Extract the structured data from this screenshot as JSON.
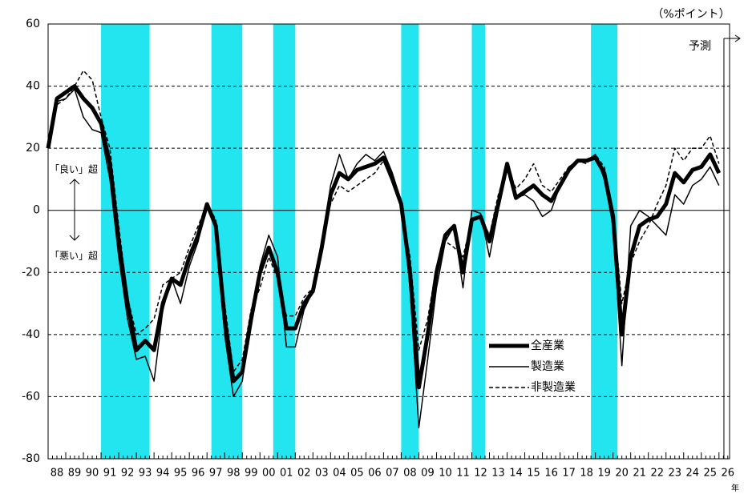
{
  "chart_data": {
    "type": "line",
    "unit_label": "（%ポイント）",
    "x_axis_label": "年",
    "forecast_label": "予測",
    "forecast_x": 2026.28,
    "annotations": [
      "「良い」超",
      "「悪い」超"
    ],
    "shaded_periods": [
      [
        1991,
        1993.75
      ],
      [
        1997.25,
        1999
      ],
      [
        2000.75,
        2002
      ],
      [
        2008,
        2009
      ],
      [
        2012,
        2012.75
      ],
      [
        2018.75,
        2020.25
      ]
    ],
    "shade_color": "#22e5f0",
    "xlim": [
      1988,
      2026.6
    ],
    "ylim": [
      -80,
      60
    ],
    "yticks": [
      -80,
      -60,
      -40,
      -20,
      0,
      20,
      40,
      60
    ],
    "grid": true,
    "xticks": [
      {
        "value": 1988,
        "label": "88"
      },
      {
        "value": 1989,
        "label": "89"
      },
      {
        "value": 1990,
        "label": "90"
      },
      {
        "value": 1991,
        "label": "91"
      },
      {
        "value": 1992,
        "label": "92"
      },
      {
        "value": 1993,
        "label": "93"
      },
      {
        "value": 1994,
        "label": "94"
      },
      {
        "value": 1995,
        "label": "95"
      },
      {
        "value": 1996,
        "label": "96"
      },
      {
        "value": 1997,
        "label": "97"
      },
      {
        "value": 1998,
        "label": "98"
      },
      {
        "value": 1999,
        "label": "99"
      },
      {
        "value": 2000,
        "label": "00"
      },
      {
        "value": 2001,
        "label": "01"
      },
      {
        "value": 2002,
        "label": "02"
      },
      {
        "value": 2003,
        "label": "03"
      },
      {
        "value": 2004,
        "label": "04"
      },
      {
        "value": 2005,
        "label": "05"
      },
      {
        "value": 2006,
        "label": "06"
      },
      {
        "value": 2007,
        "label": "07"
      },
      {
        "value": 2008,
        "label": "08"
      },
      {
        "value": 2009,
        "label": "09"
      },
      {
        "value": 2010,
        "label": "10"
      },
      {
        "value": 2011,
        "label": "11"
      },
      {
        "value": 2012,
        "label": "12"
      },
      {
        "value": 2013,
        "label": "13"
      },
      {
        "value": 2014,
        "label": "14"
      },
      {
        "value": 2015,
        "label": "15"
      },
      {
        "value": 2016,
        "label": "16"
      },
      {
        "value": 2017,
        "label": "17"
      },
      {
        "value": 2018,
        "label": "18"
      },
      {
        "value": 2019,
        "label": "19"
      },
      {
        "value": 2020,
        "label": "20"
      },
      {
        "value": 2021,
        "label": "21"
      },
      {
        "value": 2022,
        "label": "22"
      },
      {
        "value": 2023,
        "label": "23"
      },
      {
        "value": 2024,
        "label": "24"
      },
      {
        "value": 2025,
        "label": "25"
      },
      {
        "value": 2026,
        "label": "26"
      }
    ],
    "x": [
      1988,
      1988.5,
      1989,
      1989.5,
      1990,
      1990.5,
      1991,
      1991.5,
      1992,
      1992.5,
      1993,
      1993.5,
      1994,
      1994.5,
      1995,
      1995.5,
      1996,
      1996.5,
      1997,
      1997.5,
      1998,
      1998.5,
      1999,
      1999.5,
      2000,
      2000.5,
      2001,
      2001.5,
      2002,
      2002.5,
      2003,
      2003.5,
      2004,
      2004.5,
      2005,
      2005.5,
      2006,
      2006.5,
      2007,
      2007.5,
      2008,
      2008.5,
      2009,
      2009.5,
      2010,
      2010.5,
      2011,
      2011.5,
      2012,
      2012.5,
      2013,
      2013.5,
      2014,
      2014.5,
      2015,
      2015.5,
      2016,
      2016.5,
      2017,
      2017.5,
      2018,
      2018.5,
      2019,
      2019.5,
      2020,
      2020.5,
      2021,
      2021.5,
      2022,
      2022.5,
      2023,
      2023.5,
      2024,
      2024.5,
      2025,
      2025.5,
      2026
    ],
    "series": [
      {
        "name": "全産業",
        "color": "#000000",
        "width": 5,
        "dash": "none",
        "values": [
          20,
          36,
          38,
          40,
          36,
          33,
          28,
          15,
          -10,
          -30,
          -45,
          -42,
          -45,
          -30,
          -22,
          -24,
          -15,
          -8,
          2,
          -5,
          -35,
          -55,
          -52,
          -35,
          -20,
          -12,
          -20,
          -38,
          -38,
          -30,
          -26,
          -12,
          5,
          12,
          10,
          13,
          14,
          15,
          17,
          10,
          2,
          -20,
          -57,
          -40,
          -20,
          -8,
          -5,
          -20,
          -3,
          -2,
          -10,
          2,
          15,
          4,
          6,
          8,
          5,
          3,
          8,
          13,
          16,
          16,
          17,
          12,
          -2,
          -40,
          -15,
          -5,
          -3,
          -2,
          2,
          12,
          9,
          13,
          14,
          18,
          12
        ]
      },
      {
        "name": "製造業",
        "color": "#000000",
        "width": 1.5,
        "dash": "none",
        "values": [
          22,
          35,
          36,
          39,
          30,
          26,
          25,
          10,
          -15,
          -35,
          -48,
          -47,
          -55,
          -32,
          -22,
          -30,
          -18,
          -10,
          2,
          -5,
          -40,
          -60,
          -55,
          -35,
          -18,
          -8,
          -15,
          -44,
          -44,
          -32,
          -26,
          -12,
          8,
          18,
          10,
          15,
          18,
          16,
          19,
          12,
          3,
          -25,
          -70,
          -48,
          -25,
          -10,
          -5,
          -25,
          0,
          -1,
          -15,
          0,
          15,
          4,
          5,
          3,
          -2,
          0,
          8,
          14,
          16,
          16,
          18,
          10,
          -5,
          -50,
          -5,
          0,
          -2,
          -5,
          -8,
          5,
          2,
          8,
          10,
          14,
          8
        ]
      },
      {
        "name": "非製造業",
        "color": "#000000",
        "width": 1.5,
        "dash": "5 3",
        "values": [
          20,
          34,
          36,
          40,
          45,
          42,
          30,
          20,
          -5,
          -28,
          -40,
          -38,
          -35,
          -24,
          -22,
          -20,
          -12,
          -5,
          2,
          -3,
          -30,
          -52,
          -48,
          -32,
          -25,
          -15,
          -22,
          -34,
          -34,
          -28,
          -25,
          -10,
          2,
          8,
          6,
          8,
          10,
          12,
          16,
          10,
          1,
          -15,
          -45,
          -35,
          -18,
          -10,
          -12,
          -15,
          -3,
          -2,
          -8,
          5,
          14,
          7,
          10,
          15,
          8,
          6,
          10,
          14,
          16,
          15,
          18,
          14,
          0,
          -30,
          -17,
          -10,
          -5,
          2,
          8,
          20,
          16,
          20,
          20,
          24,
          15
        ]
      }
    ]
  }
}
